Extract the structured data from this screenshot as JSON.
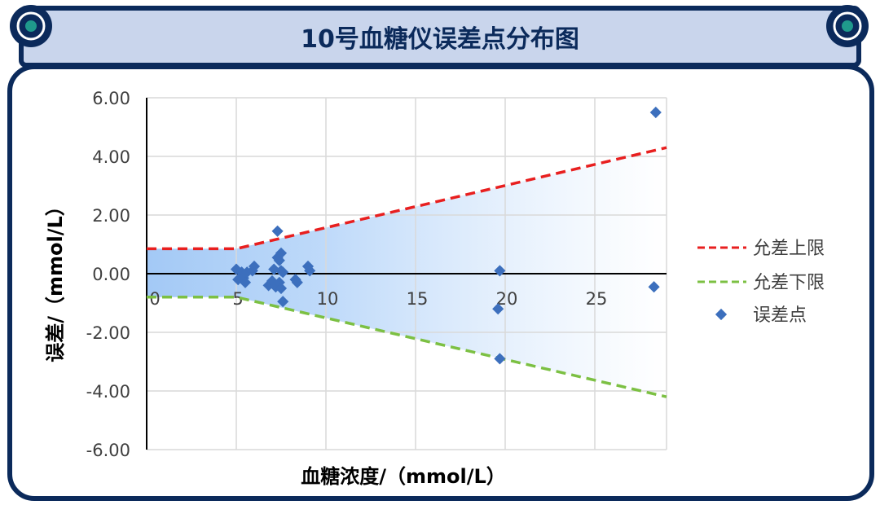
{
  "title": "10号血糖仪误差点分布图",
  "colors": {
    "frame": "#0b2a5b",
    "header_fill": "#c9d5ec",
    "upper_line": "#e81f1f",
    "lower_line": "#7cc043",
    "points": "#3c6fbd",
    "band": "#a9cdf7"
  },
  "chart_data": {
    "type": "scatter",
    "xlabel": "血糖浓度/（mmol/L）",
    "ylabel": "误差/（mmol/L）",
    "xlim": [
      0,
      29
    ],
    "ylim": [
      -6,
      6
    ],
    "x_ticks": [
      "0",
      "5",
      "10",
      "15",
      "20",
      "25"
    ],
    "y_ticks": [
      "6.00",
      "4.00",
      "2.00",
      "0.00",
      "-2.00",
      "-4.00",
      "-6.00"
    ],
    "grid": true,
    "legend_position": "right",
    "series": [
      {
        "name": "允差上限",
        "kind": "dashed-line",
        "x": [
          0,
          5,
          29
        ],
        "y": [
          0.85,
          0.85,
          4.3
        ]
      },
      {
        "name": "允差下限",
        "kind": "dashed-line",
        "x": [
          0,
          5,
          29
        ],
        "y": [
          -0.8,
          -0.8,
          -4.2
        ]
      },
      {
        "name": "误差点",
        "kind": "scatter",
        "x": [
          5.0,
          5.1,
          5.3,
          5.4,
          5.5,
          5.6,
          5.9,
          6.0,
          6.8,
          7.0,
          7.1,
          7.2,
          7.3,
          7.4,
          7.5,
          7.4,
          7.5,
          7.6,
          7.6,
          7.3,
          7.5,
          8.3,
          8.4,
          9.0,
          9.1,
          19.7,
          19.7,
          19.6,
          28.4,
          28.3
        ],
        "y": [
          0.15,
          -0.2,
          0.05,
          -0.15,
          -0.3,
          0.05,
          0.1,
          0.25,
          -0.4,
          -0.25,
          0.15,
          -0.45,
          0.55,
          0.45,
          0.7,
          -0.3,
          0.1,
          0.05,
          -0.95,
          1.45,
          -0.5,
          -0.2,
          -0.3,
          0.25,
          0.1,
          0.1,
          -2.9,
          -1.2,
          5.5,
          -0.45
        ]
      }
    ]
  }
}
